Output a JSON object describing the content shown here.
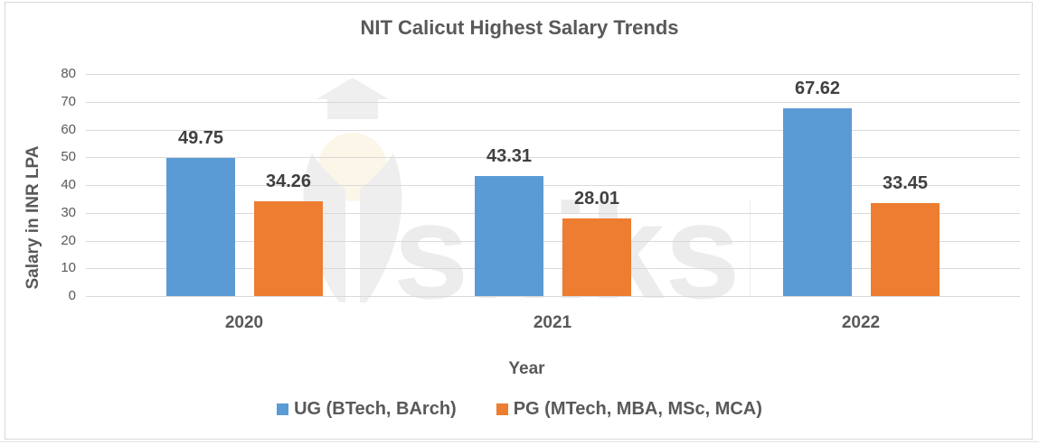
{
  "chart_data": {
    "type": "bar",
    "title": "NIT Calicut Highest Salary Trends",
    "xlabel": "Year",
    "ylabel": "Salary in INR LPA",
    "categories": [
      "2020",
      "2021",
      "2022"
    ],
    "series": [
      {
        "name": "UG (BTech, BArch)",
        "color": "#5b9bd5",
        "values": [
          49.75,
          43.31,
          67.62
        ]
      },
      {
        "name": "PG (MTech, MBA, MSc, MCA)",
        "color": "#ed7d31",
        "values": [
          34.26,
          28.01,
          33.45
        ]
      }
    ],
    "ylim": [
      0,
      80
    ],
    "yticks": [
      0,
      10,
      20,
      30,
      40,
      50,
      60,
      70,
      80
    ],
    "grid": true,
    "legend_position": "bottom",
    "data_labels": true
  },
  "labels": {
    "title": "NIT Calicut Highest Salary Trends",
    "xlabel": "Year",
    "ylabel": "Salary in INR LPA",
    "yticks": [
      "0",
      "10",
      "20",
      "30",
      "40",
      "50",
      "60",
      "70",
      "80"
    ],
    "categories": [
      "2020",
      "2021",
      "2022"
    ],
    "ug": [
      "49.75",
      "43.31",
      "67.62"
    ],
    "pg": [
      "34.26",
      "28.01",
      "33.45"
    ],
    "legend": [
      "UG (BTech, BArch)",
      "PG (MTech, MBA, MSc, MCA)"
    ]
  },
  "watermark": {
    "text": "shiksha"
  }
}
